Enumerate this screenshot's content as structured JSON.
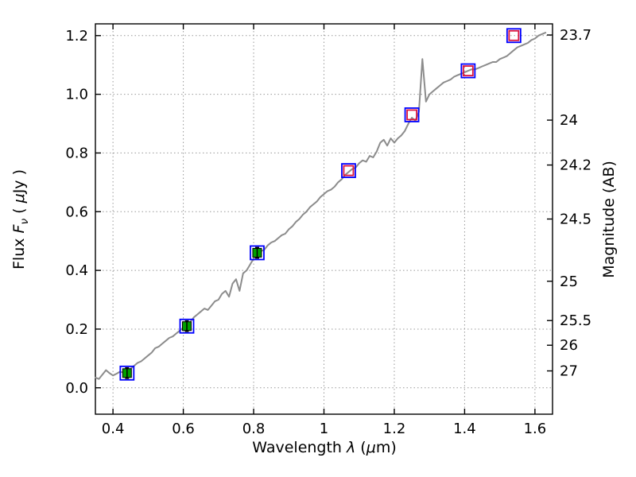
{
  "chart_data": {
    "type": "line",
    "title": "",
    "labels": {
      "xlabel": {
        "text1": "Wavelength  ",
        "sym1": "λ",
        "text2": " (",
        "sym2": "μ",
        "text3": "m)"
      },
      "ylabel_left": {
        "text1": "Flux  ",
        "sym1": "F",
        "sub": "ν",
        "text2": " ( ",
        "sym2": "μ",
        "text3": "Jy )"
      },
      "ylabel_right": "Magnitude (AB)"
    },
    "xlim": [
      0.35,
      1.65
    ],
    "ylim": [
      -0.09,
      1.24
    ],
    "grid": "dotted",
    "x_ticks": [
      0.4,
      0.6,
      0.8,
      1.0,
      1.2,
      1.4,
      1.6
    ],
    "x_tick_labels": [
      "0.4",
      "0.6",
      "0.8",
      "1",
      "1.2",
      "1.4",
      "1.6"
    ],
    "y_ticks_left": [
      0.0,
      0.2,
      0.4,
      0.6,
      0.8,
      1.0,
      1.2
    ],
    "y_tick_labels_left": [
      "0.0",
      "0.2",
      "0.4",
      "0.6",
      "0.8",
      "1.0",
      "1.2"
    ],
    "y_ticks_right": {
      "labels": [
        "23.7",
        "24",
        "24.2",
        "24.5",
        "25",
        "25.5",
        "26",
        "27"
      ],
      "flux_positions": [
        1.202,
        0.912,
        0.759,
        0.575,
        0.363,
        0.229,
        0.145,
        0.0575
      ]
    },
    "style": {
      "axis_color": "#000000",
      "grid_color": "#999999",
      "background": "#ffffff"
    },
    "series": [
      {
        "name": "model-spectrum",
        "type": "line",
        "color": "#8c8c8c",
        "width": 2,
        "x_start": 0.35,
        "dx": 0.01,
        "values": [
          0.035,
          0.03,
          0.045,
          0.06,
          0.05,
          0.042,
          0.048,
          0.055,
          0.052,
          0.058,
          0.065,
          0.075,
          0.085,
          0.09,
          0.1,
          0.11,
          0.12,
          0.135,
          0.14,
          0.15,
          0.16,
          0.17,
          0.175,
          0.185,
          0.195,
          0.205,
          0.21,
          0.225,
          0.24,
          0.25,
          0.26,
          0.27,
          0.265,
          0.28,
          0.295,
          0.3,
          0.32,
          0.33,
          0.31,
          0.355,
          0.37,
          0.33,
          0.39,
          0.4,
          0.42,
          0.44,
          0.455,
          0.465,
          0.47,
          0.485,
          0.495,
          0.5,
          0.51,
          0.52,
          0.525,
          0.54,
          0.55,
          0.565,
          0.575,
          0.59,
          0.6,
          0.615,
          0.625,
          0.635,
          0.65,
          0.66,
          0.67,
          0.675,
          0.685,
          0.7,
          0.71,
          0.725,
          0.735,
          0.745,
          0.75,
          0.765,
          0.775,
          0.77,
          0.79,
          0.785,
          0.805,
          0.835,
          0.845,
          0.825,
          0.85,
          0.835,
          0.85,
          0.86,
          0.875,
          0.9,
          0.92,
          0.91,
          0.94,
          1.12,
          0.975,
          1.0,
          1.01,
          1.02,
          1.03,
          1.04,
          1.045,
          1.05,
          1.06,
          1.065,
          1.07,
          1.075,
          1.08,
          1.085,
          1.085,
          1.09,
          1.095,
          1.1,
          1.105,
          1.11,
          1.11,
          1.12,
          1.125,
          1.13,
          1.14,
          1.15,
          1.16,
          1.165,
          1.17,
          1.175,
          1.185,
          1.19,
          1.2,
          1.205,
          1.21
        ]
      },
      {
        "name": "photometry-aperture-blue",
        "type": "scatter",
        "marker": "open-square",
        "color": "#0000ff",
        "size": 17,
        "stroke_width": 1.8,
        "points": [
          [
            0.44,
            0.05
          ],
          [
            0.61,
            0.21
          ],
          [
            0.81,
            0.46
          ],
          [
            1.07,
            0.74
          ],
          [
            1.25,
            0.93
          ],
          [
            1.41,
            1.08
          ],
          [
            1.54,
            1.2
          ]
        ]
      },
      {
        "name": "photometry-detected-green",
        "type": "scatter",
        "marker": "filled-square",
        "color": "#00a000",
        "edge": "#000000",
        "size": 11,
        "yerr": 0.018,
        "points": [
          [
            0.44,
            0.05
          ],
          [
            0.61,
            0.21
          ],
          [
            0.81,
            0.46
          ]
        ]
      },
      {
        "name": "photometry-model-red",
        "type": "scatter",
        "marker": "open-square",
        "color": "#dc143c",
        "size": 12,
        "stroke_width": 1.8,
        "points": [
          [
            1.07,
            0.74
          ],
          [
            1.25,
            0.93
          ],
          [
            1.41,
            1.08
          ],
          [
            1.54,
            1.2
          ]
        ]
      }
    ]
  }
}
